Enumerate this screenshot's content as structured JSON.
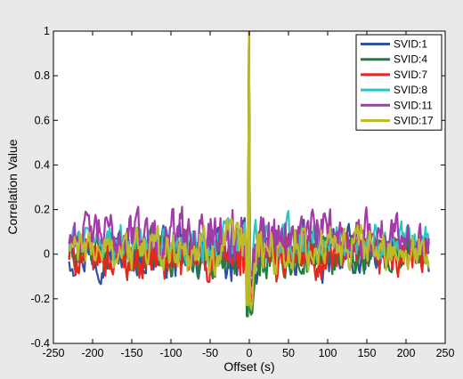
{
  "chart_data": {
    "type": "line",
    "title": "",
    "xlabel": "Offset (s)",
    "ylabel": "Correlation Value",
    "xlim": [
      -250,
      250
    ],
    "ylim": [
      -0.4,
      1
    ],
    "xticks": [
      -250,
      -200,
      -150,
      -100,
      -50,
      0,
      50,
      100,
      150,
      200,
      250
    ],
    "yticks": [
      -0.4,
      -0.2,
      0,
      0.2,
      0.4,
      0.6,
      0.8,
      1
    ],
    "ytick_labels": [
      "-0.4",
      "-0.2",
      "0",
      "0.2",
      "0.4",
      "0.6",
      "0.8",
      "1"
    ],
    "data_range_x": [
      -230,
      230
    ],
    "peak": {
      "x": 0,
      "y": 1
    },
    "grid": false,
    "legend_position": "top-right",
    "series": [
      {
        "name": "SVID:1",
        "color": "#3050a0",
        "upper": 0.2,
        "lower": -0.2,
        "center_min": -0.15
      },
      {
        "name": "SVID:4",
        "color": "#1f7f3a",
        "upper": 0.18,
        "lower": -0.17,
        "center_min": -0.28
      },
      {
        "name": "SVID:7",
        "color": "#e8261c",
        "upper": 0.18,
        "lower": -0.21,
        "center_min": -0.22
      },
      {
        "name": "SVID:8",
        "color": "#2ec4c4",
        "upper": 0.22,
        "lower": -0.1,
        "center_min": -0.1
      },
      {
        "name": "SVID:11",
        "color": "#a23aa8",
        "upper": 0.3,
        "lower": -0.12,
        "center_min": -0.1
      },
      {
        "name": "SVID:17",
        "color": "#bcbc2a",
        "upper": 0.2,
        "lower": -0.16,
        "center_min": -0.25
      }
    ]
  }
}
